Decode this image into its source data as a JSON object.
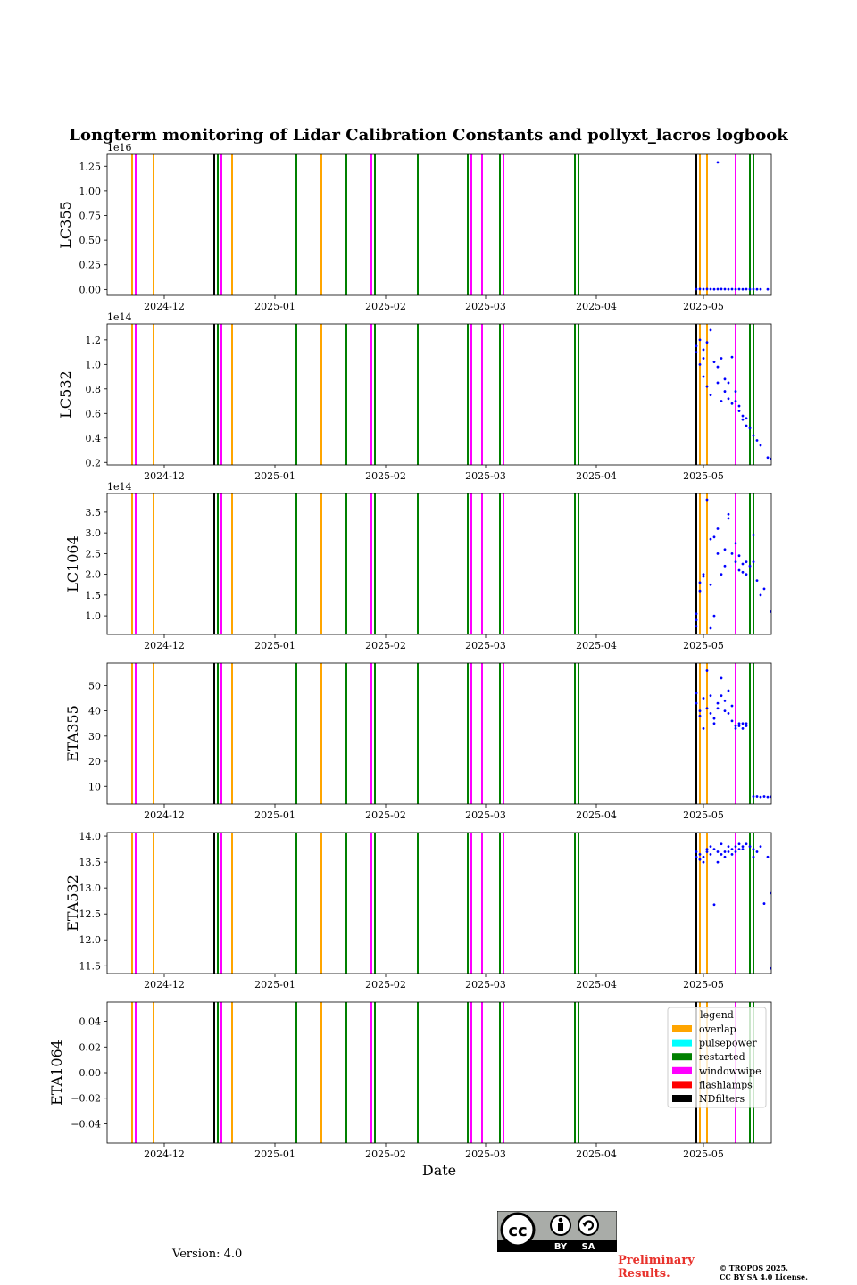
{
  "figure": {
    "title": "Longterm monitoring of Lidar Calibration Constants and pollyxt_lacros logbook",
    "version": "Version: 4.0",
    "preliminary_line1": "Preliminary",
    "preliminary_line2": "Results.",
    "copyright_line1": "© TROPOS 2025.",
    "copyright_line2": "CC BY SA 4.0 License.",
    "cc_badge": {
      "by": "BY",
      "sa": "SA",
      "cc": "cc"
    }
  },
  "chart_data": {
    "type": "scatter",
    "xlabel": "Date",
    "xlim": [
      "2024-11-15",
      "2025-05-20"
    ],
    "x_ticks": [
      "2024-12-01",
      "2025-01-01",
      "2025-02-01",
      "2025-03-01",
      "2025-04-01",
      "2025-05-01"
    ],
    "x_tick_labels": [
      "2024-12",
      "2025-01",
      "2025-02",
      "2025-03",
      "2025-04",
      "2025-05"
    ],
    "colors": {
      "overlap": "#ffa500",
      "pulsepower": "#00ffff",
      "restarted": "#008000",
      "windowwipe": "#ff00ff",
      "flashlamps": "#ff0000",
      "NDfilters": "#000000",
      "points": "#0000ff"
    },
    "logbook": [
      {
        "date": "2024-11-22",
        "type": "overlap"
      },
      {
        "date": "2024-11-23",
        "type": "windowwipe"
      },
      {
        "date": "2024-11-28",
        "type": "overlap"
      },
      {
        "date": "2024-12-15",
        "type": "flashlamps"
      },
      {
        "date": "2024-12-15",
        "type": "NDfilters"
      },
      {
        "date": "2024-12-16",
        "type": "restarted"
      },
      {
        "date": "2024-12-17",
        "type": "windowwipe"
      },
      {
        "date": "2024-12-20",
        "type": "overlap"
      },
      {
        "date": "2025-01-07",
        "type": "restarted"
      },
      {
        "date": "2025-01-14",
        "type": "overlap"
      },
      {
        "date": "2025-01-21",
        "type": "restarted"
      },
      {
        "date": "2025-01-28",
        "type": "windowwipe"
      },
      {
        "date": "2025-01-29",
        "type": "restarted"
      },
      {
        "date": "2025-02-10",
        "type": "restarted"
      },
      {
        "date": "2025-02-24",
        "type": "restarted"
      },
      {
        "date": "2025-02-25",
        "type": "windowwipe"
      },
      {
        "date": "2025-02-28",
        "type": "windowwipe"
      },
      {
        "date": "2025-03-05",
        "type": "restarted"
      },
      {
        "date": "2025-03-06",
        "type": "windowwipe"
      },
      {
        "date": "2025-03-26",
        "type": "restarted"
      },
      {
        "date": "2025-03-27",
        "type": "restarted"
      },
      {
        "date": "2025-04-29",
        "type": "flashlamps"
      },
      {
        "date": "2025-04-29",
        "type": "NDfilters"
      },
      {
        "date": "2025-04-30",
        "type": "overlap"
      },
      {
        "date": "2025-05-02",
        "type": "overlap"
      },
      {
        "date": "2025-05-10",
        "type": "windowwipe"
      },
      {
        "date": "2025-05-14",
        "type": "restarted"
      },
      {
        "date": "2025-05-15",
        "type": "restarted"
      }
    ],
    "legend": {
      "title": "legend",
      "placement": "upper-right",
      "entries": [
        "overlap",
        "pulsepower",
        "restarted",
        "windowwipe",
        "flashlamps",
        "NDfilters"
      ]
    },
    "panels": [
      {
        "ylabel": "LC355",
        "offset_text": "1e16",
        "ylim": [
          -0.06,
          1.37
        ],
        "yticks": [
          0,
          0.25,
          0.5,
          0.75,
          1.0,
          1.25
        ],
        "ytick_labels": [
          "0.00",
          "0.25",
          "0.50",
          "0.75",
          "1.00",
          "1.25"
        ],
        "points": [
          [
            "2025-04-29",
            0.003
          ],
          [
            "2025-04-30",
            0.004
          ],
          [
            "2025-05-01",
            0.003
          ],
          [
            "2025-05-02",
            0.004
          ],
          [
            "2025-05-03",
            0.003
          ],
          [
            "2025-05-04",
            0.002
          ],
          [
            "2025-05-05",
            0.003
          ],
          [
            "2025-05-06",
            0.004
          ],
          [
            "2025-05-07",
            0.003
          ],
          [
            "2025-05-08",
            0.002
          ],
          [
            "2025-05-09",
            0.003
          ],
          [
            "2025-05-10",
            0.002
          ],
          [
            "2025-05-11",
            0.003
          ],
          [
            "2025-05-12",
            0.002
          ],
          [
            "2025-05-13",
            0.003
          ],
          [
            "2025-05-14",
            0.002
          ],
          [
            "2025-05-15",
            0.003
          ],
          [
            "2025-05-16",
            0.002
          ],
          [
            "2025-05-17",
            0.002
          ],
          [
            "2025-05-19",
            0.002
          ],
          [
            "2025-05-05",
            1.29
          ]
        ]
      },
      {
        "ylabel": "LC532",
        "offset_text": "1e14",
        "ylim": [
          0.18,
          1.33
        ],
        "yticks": [
          0.2,
          0.4,
          0.6,
          0.8,
          1.0,
          1.2
        ],
        "ytick_labels": [
          "0.2",
          "0.4",
          "0.6",
          "0.8",
          "1.0",
          "1.2"
        ],
        "points": [
          [
            "2025-04-29",
            1.1
          ],
          [
            "2025-04-29",
            1.15
          ],
          [
            "2025-04-30",
            1.0
          ],
          [
            "2025-04-30",
            1.2
          ],
          [
            "2025-05-01",
            1.05
          ],
          [
            "2025-05-01",
            0.9
          ],
          [
            "2025-05-01",
            1.12
          ],
          [
            "2025-05-02",
            0.82
          ],
          [
            "2025-05-02",
            1.18
          ],
          [
            "2025-05-03",
            1.28
          ],
          [
            "2025-05-03",
            0.75
          ],
          [
            "2025-05-04",
            1.02
          ],
          [
            "2025-05-05",
            0.85
          ],
          [
            "2025-05-05",
            0.98
          ],
          [
            "2025-05-06",
            1.05
          ],
          [
            "2025-05-06",
            0.7
          ],
          [
            "2025-05-07",
            0.88
          ],
          [
            "2025-05-07",
            0.78
          ],
          [
            "2025-05-08",
            0.85
          ],
          [
            "2025-05-08",
            0.72
          ],
          [
            "2025-05-09",
            1.06
          ],
          [
            "2025-05-09",
            0.68
          ],
          [
            "2025-05-10",
            0.78
          ],
          [
            "2025-05-10",
            0.7
          ],
          [
            "2025-05-11",
            0.62
          ],
          [
            "2025-05-11",
            0.66
          ],
          [
            "2025-05-12",
            0.58
          ],
          [
            "2025-05-12",
            0.55
          ],
          [
            "2025-05-13",
            0.5
          ],
          [
            "2025-05-13",
            0.56
          ],
          [
            "2025-05-14",
            0.48
          ],
          [
            "2025-05-15",
            0.42
          ],
          [
            "2025-05-16",
            0.38
          ],
          [
            "2025-05-17",
            0.34
          ],
          [
            "2025-05-19",
            0.24
          ],
          [
            "2025-05-20",
            0.23
          ]
        ]
      },
      {
        "ylabel": "LC1064",
        "offset_text": "1e14",
        "ylim": [
          0.55,
          3.95
        ],
        "yticks": [
          1.0,
          1.5,
          2.0,
          2.5,
          3.0,
          3.5
        ],
        "ytick_labels": [
          "1.0",
          "1.5",
          "2.0",
          "2.5",
          "3.0",
          "3.5"
        ],
        "points": [
          [
            "2025-04-29",
            0.75
          ],
          [
            "2025-04-29",
            0.9
          ],
          [
            "2025-04-29",
            1.05
          ],
          [
            "2025-04-30",
            1.8
          ],
          [
            "2025-04-30",
            1.6
          ],
          [
            "2025-05-01",
            1.95
          ],
          [
            "2025-05-01",
            2.0
          ],
          [
            "2025-05-02",
            3.8
          ],
          [
            "2025-05-03",
            1.75
          ],
          [
            "2025-05-03",
            0.7
          ],
          [
            "2025-05-03",
            2.85
          ],
          [
            "2025-05-04",
            2.9
          ],
          [
            "2025-05-04",
            1.0
          ],
          [
            "2025-05-05",
            2.5
          ],
          [
            "2025-05-05",
            3.1
          ],
          [
            "2025-05-06",
            2.0
          ],
          [
            "2025-05-07",
            2.6
          ],
          [
            "2025-05-07",
            2.2
          ],
          [
            "2025-05-08",
            3.45
          ],
          [
            "2025-05-08",
            3.35
          ],
          [
            "2025-05-09",
            2.5
          ],
          [
            "2025-05-10",
            2.75
          ],
          [
            "2025-05-10",
            2.3
          ],
          [
            "2025-05-11",
            2.1
          ],
          [
            "2025-05-11",
            2.45
          ],
          [
            "2025-05-12",
            2.25
          ],
          [
            "2025-05-12",
            2.05
          ],
          [
            "2025-05-13",
            2.3
          ],
          [
            "2025-05-13",
            2.0
          ],
          [
            "2025-05-14",
            2.2
          ],
          [
            "2025-05-15",
            2.95
          ],
          [
            "2025-05-15",
            2.3
          ],
          [
            "2025-05-16",
            1.85
          ],
          [
            "2025-05-17",
            1.5
          ],
          [
            "2025-05-18",
            1.65
          ],
          [
            "2025-05-20",
            1.1
          ]
        ]
      },
      {
        "ylabel": "ETA355",
        "offset_text": "",
        "ylim": [
          3,
          59
        ],
        "yticks": [
          10,
          20,
          30,
          40,
          50
        ],
        "ytick_labels": [
          "10",
          "20",
          "30",
          "40",
          "50"
        ],
        "points": [
          [
            "2025-04-29",
            47
          ],
          [
            "2025-04-29",
            43
          ],
          [
            "2025-04-30",
            38
          ],
          [
            "2025-04-30",
            40
          ],
          [
            "2025-05-01",
            45
          ],
          [
            "2025-05-01",
            33
          ],
          [
            "2025-05-02",
            56
          ],
          [
            "2025-05-02",
            41
          ],
          [
            "2025-05-03",
            39
          ],
          [
            "2025-05-03",
            46
          ],
          [
            "2025-05-04",
            37
          ],
          [
            "2025-05-04",
            35
          ],
          [
            "2025-05-05",
            43
          ],
          [
            "2025-05-05",
            41
          ],
          [
            "2025-05-06",
            53
          ],
          [
            "2025-05-06",
            46
          ],
          [
            "2025-05-07",
            44
          ],
          [
            "2025-05-07",
            40
          ],
          [
            "2025-05-08",
            48
          ],
          [
            "2025-05-08",
            39
          ],
          [
            "2025-05-09",
            36
          ],
          [
            "2025-05-09",
            42
          ],
          [
            "2025-05-10",
            34
          ],
          [
            "2025-05-10",
            33
          ],
          [
            "2025-05-11",
            35
          ],
          [
            "2025-05-11",
            34
          ],
          [
            "2025-05-12",
            35
          ],
          [
            "2025-05-12",
            33
          ],
          [
            "2025-05-13",
            35
          ],
          [
            "2025-05-13",
            34
          ],
          [
            "2025-05-15",
            6
          ],
          [
            "2025-05-16",
            6
          ],
          [
            "2025-05-17",
            5.8
          ],
          [
            "2025-05-18",
            6
          ],
          [
            "2025-05-19",
            5.8
          ],
          [
            "2025-05-20",
            5.9
          ]
        ]
      },
      {
        "ylabel": "ETA532",
        "offset_text": "",
        "ylim": [
          11.35,
          14.07
        ],
        "yticks": [
          11.5,
          12.0,
          12.5,
          13.0,
          13.5,
          14.0
        ],
        "ytick_labels": [
          "11.5",
          "12.0",
          "12.5",
          "13.0",
          "13.5",
          "14.0"
        ],
        "points": [
          [
            "2025-04-29",
            13.6
          ],
          [
            "2025-04-29",
            13.7
          ],
          [
            "2025-04-30",
            13.55
          ],
          [
            "2025-04-30",
            13.65
          ],
          [
            "2025-05-01",
            13.6
          ],
          [
            "2025-05-01",
            13.5
          ],
          [
            "2025-05-02",
            13.7
          ],
          [
            "2025-05-02",
            13.75
          ],
          [
            "2025-05-03",
            13.8
          ],
          [
            "2025-05-03",
            13.65
          ],
          [
            "2025-05-04",
            12.68
          ],
          [
            "2025-05-04",
            13.75
          ],
          [
            "2025-05-05",
            13.5
          ],
          [
            "2025-05-05",
            13.7
          ],
          [
            "2025-05-06",
            13.65
          ],
          [
            "2025-05-06",
            13.85
          ],
          [
            "2025-05-07",
            13.7
          ],
          [
            "2025-05-07",
            13.6
          ],
          [
            "2025-05-08",
            13.8
          ],
          [
            "2025-05-08",
            13.7
          ],
          [
            "2025-05-09",
            13.75
          ],
          [
            "2025-05-09",
            13.65
          ],
          [
            "2025-05-10",
            13.8
          ],
          [
            "2025-05-10",
            13.7
          ],
          [
            "2025-05-11",
            13.85
          ],
          [
            "2025-05-11",
            13.75
          ],
          [
            "2025-05-12",
            13.8
          ],
          [
            "2025-05-12",
            13.75
          ],
          [
            "2025-05-13",
            13.85
          ],
          [
            "2025-05-14",
            13.8
          ],
          [
            "2025-05-15",
            13.6
          ],
          [
            "2025-05-15",
            13.75
          ],
          [
            "2025-05-16",
            13.7
          ],
          [
            "2025-05-17",
            13.8
          ],
          [
            "2025-05-18",
            12.7
          ],
          [
            "2025-05-19",
            13.6
          ],
          [
            "2025-05-20",
            12.9
          ],
          [
            "2025-05-20",
            11.45
          ]
        ]
      },
      {
        "ylabel": "ETA1064",
        "offset_text": "",
        "ylim": [
          -0.055,
          0.055
        ],
        "yticks": [
          -0.04,
          -0.02,
          0.0,
          0.02,
          0.04
        ],
        "ytick_labels": [
          "−0.04",
          "−0.02",
          "0.00",
          "0.02",
          "0.04"
        ],
        "points": []
      }
    ]
  }
}
